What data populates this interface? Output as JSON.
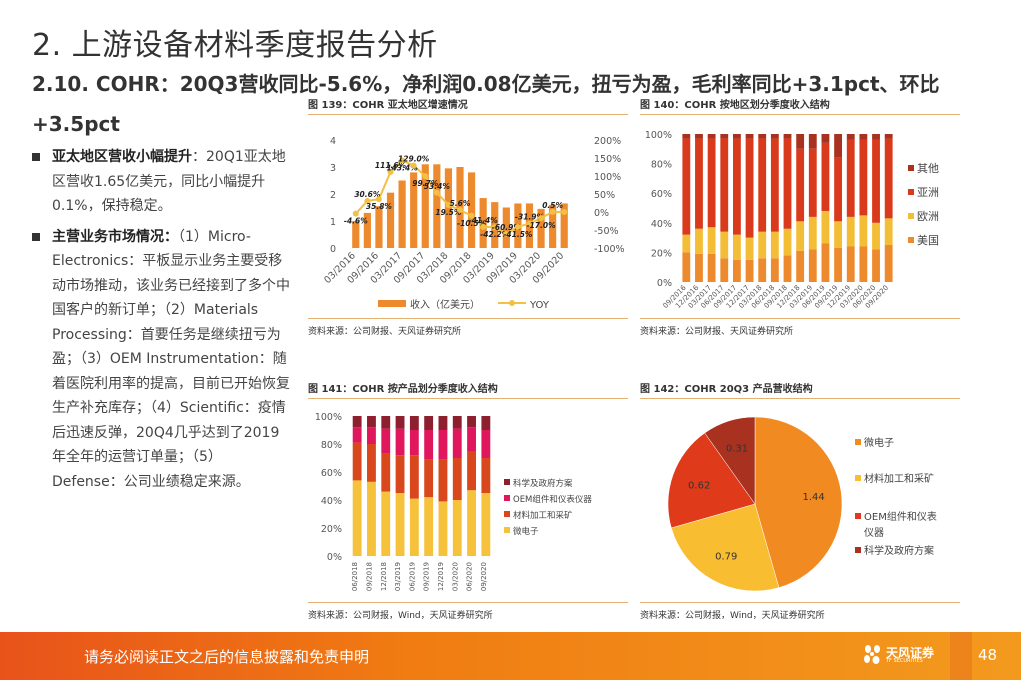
{
  "page": {
    "title": "2. 上游设备材料季度报告分析",
    "subtitle": "2.10. COHR：20Q3营收同比-5.6%，净利润0.08亿美元，扭亏为盈，毛利率同比+3.1pct、环比+3.5pct",
    "page_number": "48"
  },
  "left": {
    "bullets": [
      {
        "heading": "亚太地区营收小幅提升",
        "text": "：20Q1亚太地区营收1.65亿美元，同比小幅提升0.1%，保持稳定。"
      },
      {
        "heading": "主营业务市场情况：",
        "text": "（1）Micro-Electronics：平板显示业务主要受移动市场推动，该业务已经接到了多个中国客户的新订单；（2）Materials Processing：首要任务是继续扭亏为盈；（3）OEM Instrumentation：随着医院利用率的提高，目前已开始恢复生产补充库存；（4）Scientific：疫情后迅速反弹，20Q4几乎达到了2019年全年的运营订单量；（5）Defense：公司业绩稳定来源。"
      }
    ]
  },
  "footer": {
    "disclaimer": "请务必阅读正文之后的信息披露和免责申明",
    "logo_text": "天风证券",
    "logo_sub": "TF SECURITIES"
  },
  "colors": {
    "bar_orange": "#ee8a2e",
    "line_yellow": "#f2c042",
    "us": "#ee8a2e",
    "europe": "#f3bd36",
    "asia": "#d93a1c",
    "other": "#a8321f",
    "micro": "#f6c23c",
    "materials": "#d9471d",
    "oem": "#e0175d",
    "sci": "#8e1f2f",
    "pie_micro": "#f28a22",
    "pie_materials": "#f8bd30",
    "pie_oem": "#df3b1a",
    "pie_sci": "#a8321f"
  },
  "chart_data": [
    {
      "id": "fig139",
      "type": "bar",
      "title": "图 139：COHR 亚太地区增速情况",
      "source": "资料来源：公司财报、天风证券研究所",
      "categories": [
        "03/2016",
        "06/2016",
        "09/2016",
        "12/2016",
        "03/2017",
        "06/2017",
        "09/2017",
        "12/2017",
        "03/2018",
        "06/2018",
        "09/2018",
        "12/2018",
        "03/2019",
        "06/2019",
        "09/2019",
        "12/2019",
        "03/2020",
        "06/2020",
        "09/2020"
      ],
      "tick_labels": [
        "03/2016",
        "09/2016",
        "03/2017",
        "09/2017",
        "03/2018",
        "09/2018",
        "03/2019",
        "09/2019",
        "03/2020",
        "09/2020"
      ],
      "series": [
        {
          "name": "收入（亿美元）",
          "type": "bar",
          "axis": "left",
          "values": [
            1.0,
            1.3,
            1.55,
            2.05,
            2.5,
            2.8,
            3.1,
            3.1,
            2.95,
            3.0,
            2.8,
            1.85,
            1.7,
            1.5,
            1.65,
            1.65,
            1.45,
            1.6,
            1.65
          ]
        },
        {
          "name": "YOY",
          "type": "line",
          "axis": "right",
          "values": [
            -4.6,
            30.6,
            35.8,
            111.6,
            143.4,
            129.0,
            99.7,
            53.4,
            19.5,
            5.6,
            -10.5,
            -41.4,
            -42.2,
            -60.9,
            -41.5,
            -31.9,
            -17.0,
            0.5,
            0.1
          ],
          "labels": [
            "-4.6%",
            "30.6%",
            "35.8%",
            "111.6%",
            "143.4%",
            "129.0%",
            "99.7%",
            "53.4%",
            "19.5%",
            "5.6%",
            "-10.5%",
            "-41.4%",
            "-42.2%",
            "-60.9%",
            "-41.5%",
            "-31.9%",
            "-17.0%",
            "0.5%",
            ""
          ]
        }
      ],
      "ylim_left": [
        0,
        4
      ],
      "yticks_left": [
        "0",
        "1",
        "2",
        "3",
        "4"
      ],
      "ylim_right": [
        -100,
        200
      ],
      "yticks_right": [
        "-100%",
        "-50%",
        "0%",
        "50%",
        "100%",
        "150%",
        "200%"
      ],
      "legend": "bottom"
    },
    {
      "id": "fig140",
      "type": "bar",
      "stacked": true,
      "title": "图 140：COHR 按地区划分季度收入结构",
      "source": "资料来源：公司财报、天风证券研究所",
      "categories": [
        "09/2016",
        "12/2016",
        "03/2017",
        "06/2017",
        "09/2017",
        "12/2017",
        "03/2018",
        "06/2018",
        "09/2018",
        "12/2018",
        "03/2019",
        "06/2019",
        "09/2019",
        "12/2019",
        "03/2020",
        "06/2020",
        "09/2020"
      ],
      "series": [
        {
          "name": "美国",
          "values": [
            20,
            19,
            19,
            16,
            15,
            15,
            16,
            16,
            18,
            21,
            22,
            26,
            23,
            24,
            24,
            22,
            25
          ]
        },
        {
          "name": "欧洲",
          "values": [
            12,
            17,
            18,
            18,
            17,
            15,
            18,
            18,
            18,
            20,
            22,
            22,
            18,
            20,
            21,
            18,
            18
          ]
        },
        {
          "name": "亚洲",
          "values": [
            65,
            61,
            60,
            63,
            65,
            67,
            63,
            63,
            61,
            49,
            46,
            46,
            43,
            52,
            51,
            56,
            54
          ]
        },
        {
          "name": "其他",
          "values": [
            3,
            3,
            3,
            3,
            3,
            3,
            3,
            3,
            3,
            10,
            10,
            6,
            16,
            4,
            4,
            4,
            3
          ]
        }
      ],
      "ylim": [
        0,
        100
      ],
      "yticks": [
        "0%",
        "20%",
        "40%",
        "60%",
        "80%",
        "100%"
      ],
      "legend_order": [
        "其他",
        "亚洲",
        "欧洲",
        "美国"
      ],
      "legend": "right"
    },
    {
      "id": "fig141",
      "type": "bar",
      "stacked": true,
      "title": "图 141：COHR 按产品划分季度收入结构",
      "source": "资料来源：公司财报，Wind，天风证券研究所",
      "categories": [
        "06/2018",
        "09/2018",
        "12/2018",
        "03/2019",
        "06/2019",
        "09/2019",
        "12/2019",
        "03/2020",
        "06/2020",
        "09/2020"
      ],
      "series": [
        {
          "name": "微电子",
          "values": [
            54,
            53,
            46,
            45,
            41,
            42,
            39,
            40,
            47,
            45
          ]
        },
        {
          "name": "材料加工和采矿",
          "values": [
            27,
            27,
            27,
            27,
            31,
            27,
            30,
            30,
            28,
            25
          ]
        },
        {
          "name": "OEM组件和仪表仪器",
          "values": [
            11,
            12,
            18,
            19,
            18,
            21,
            21,
            21,
            17,
            20
          ]
        },
        {
          "name": "科学及政府方案",
          "values": [
            8,
            8,
            9,
            9,
            10,
            10,
            10,
            9,
            8,
            10
          ]
        }
      ],
      "ylim": [
        0,
        100
      ],
      "yticks": [
        "0%",
        "20%",
        "40%",
        "60%",
        "80%",
        "100%"
      ],
      "legend_order": [
        "科学及政府方案",
        "OEM组件和仪表仪器",
        "材料加工和采矿",
        "微电子"
      ],
      "legend": "right"
    },
    {
      "id": "fig142",
      "type": "pie",
      "title": "图 142：COHR 20Q3 产品营收结构",
      "source": "资料来源：公司财报，Wind，天风证券研究所",
      "labels": [
        "微电子",
        "材料加工和采矿",
        "OEM组件和仪表仪器",
        "科学及政府方案"
      ],
      "values": [
        1.44,
        0.79,
        0.62,
        0.31
      ],
      "value_labels": [
        "1.44",
        "0.79",
        "0.62",
        "0.31"
      ],
      "legend_lines": [
        [
          "微电子"
        ],
        [
          "材料加工和采矿"
        ],
        [
          "OEM组件和仪表",
          "仪器"
        ],
        [
          "科学及政府方案"
        ]
      ],
      "legend": "right"
    }
  ]
}
